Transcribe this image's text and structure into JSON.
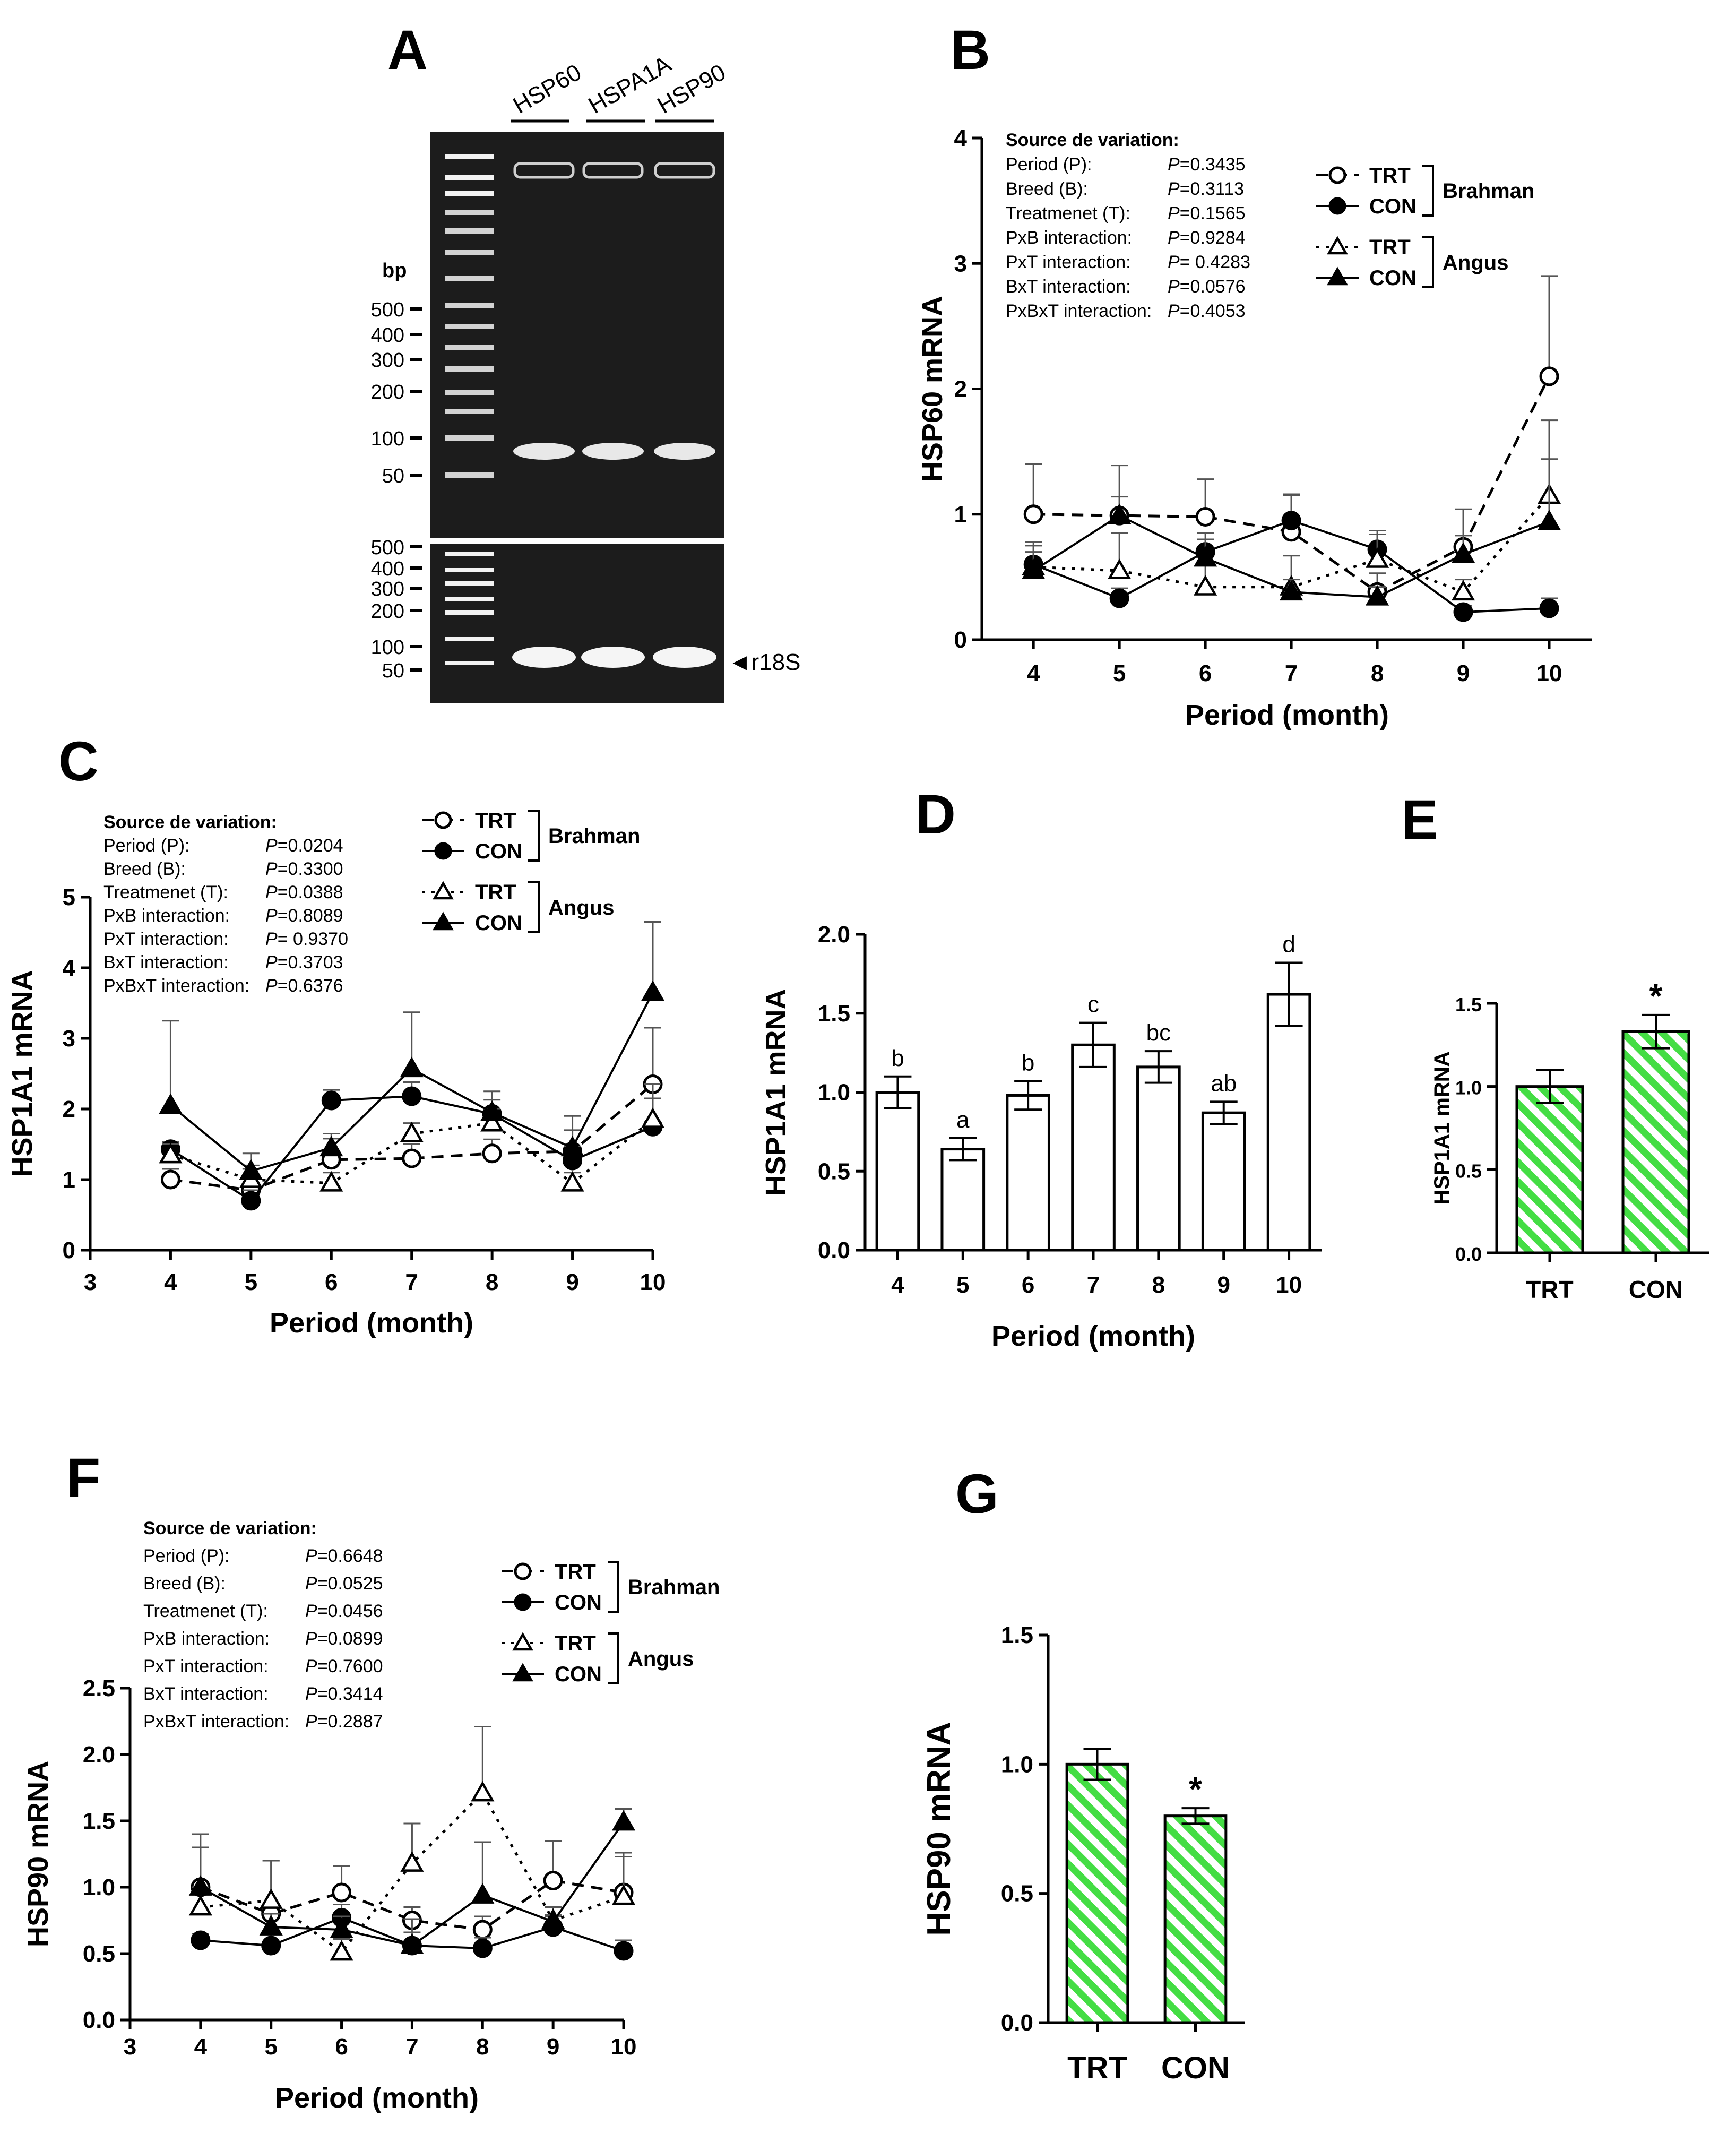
{
  "gel": {
    "letter": "A",
    "lanes": [
      "HSP60",
      "HSPA1A",
      "HSP90"
    ],
    "bp_title": "bp",
    "ladder_top": [
      "500",
      "400",
      "300",
      "200",
      "100",
      "50"
    ],
    "ladder_bottom": [
      "500",
      "400",
      "300",
      "200",
      "100",
      "50"
    ],
    "ref_label": "◄r18S"
  },
  "colors": {
    "green_fill": "#44dd44",
    "green_stroke": "#000000",
    "gel_bg": "#1c1c1c"
  },
  "chart_data": [
    {
      "letter": "B",
      "type": "line",
      "xlabel": "Period (month)",
      "ylabel": "HSP60 mRNA",
      "xlim": [
        3.4,
        10.5
      ],
      "ylim": [
        0,
        4
      ],
      "xticks": [
        "4",
        "5",
        "6",
        "7",
        "8",
        "9",
        "10"
      ],
      "yticks": [
        "0",
        "1",
        "2",
        "3",
        "4"
      ],
      "x": [
        4,
        5,
        6,
        7,
        8,
        9,
        10
      ],
      "stats_title": "Source de variation:",
      "stats": [
        [
          "Period (P):",
          "P=0.3435"
        ],
        [
          "Breed (B):",
          "P=0.3113"
        ],
        [
          "Treatmenet (T):",
          "P=0.1565"
        ],
        [
          "PxB interaction:",
          "P=0.9284"
        ],
        [
          "PxT interaction:",
          "P= 0.4283"
        ],
        [
          "BxT interaction:",
          "P=0.0576"
        ],
        [
          "PxBxT interaction:",
          "P=0.4053"
        ]
      ],
      "legend_groups": [
        "Brahman",
        "Angus"
      ],
      "series": [
        {
          "name": "TRT",
          "group": "Brahman",
          "marker": "circle-open",
          "line": "dashed",
          "values": [
            1.0,
            0.99,
            0.98,
            0.86,
            0.38,
            0.74,
            2.1
          ],
          "err": [
            0.4,
            0.4,
            0.3,
            0.3,
            0.15,
            0.3,
            0.8
          ]
        },
        {
          "name": "CON",
          "group": "Brahman",
          "marker": "circle-filled",
          "line": "solid",
          "values": [
            0.6,
            0.33,
            0.7,
            0.95,
            0.72,
            0.22,
            0.25
          ],
          "err": [
            0.15,
            0.08,
            0.15,
            0.2,
            0.15,
            0.05,
            0.08
          ]
        },
        {
          "name": "TRT",
          "group": "Angus",
          "marker": "triangle-open",
          "line": "dotted",
          "values": [
            0.58,
            0.55,
            0.42,
            0.42,
            0.64,
            0.38,
            1.15
          ],
          "err": [
            0.2,
            0.3,
            0.2,
            0.25,
            0.2,
            0.1,
            0.6
          ]
        },
        {
          "name": "CON",
          "group": "Angus",
          "marker": "triangle-filled",
          "line": "solid",
          "values": [
            0.55,
            0.99,
            0.65,
            0.38,
            0.34,
            0.68,
            0.94
          ],
          "err": [
            0.15,
            0.15,
            0.15,
            0.1,
            0.08,
            0.15,
            0.5
          ]
        }
      ]
    },
    {
      "letter": "C",
      "type": "line",
      "xlabel": "Period (month)",
      "ylabel": "HSP1A1 mRNA",
      "xlim": [
        3,
        10
      ],
      "ylim": [
        0,
        5
      ],
      "xticks": [
        "3",
        "4",
        "5",
        "6",
        "7",
        "8",
        "9",
        "10"
      ],
      "yticks": [
        "0",
        "1",
        "2",
        "3",
        "4",
        "5"
      ],
      "x": [
        4,
        5,
        6,
        7,
        8,
        9,
        10
      ],
      "stats_title": "Source de variation:",
      "stats": [
        [
          "Period (P):",
          "P=0.0204"
        ],
        [
          "Breed (B):",
          "P=0.3300"
        ],
        [
          "Treatmenet (T):",
          "P=0.0388"
        ],
        [
          "PxB interaction:",
          "P=0.8089"
        ],
        [
          "PxT interaction:",
          "P= 0.9370"
        ],
        [
          "BxT interaction:",
          "P=0.3703"
        ],
        [
          "PxBxT interaction:",
          "P=0.6376"
        ]
      ],
      "legend_groups": [
        "Brahman",
        "Angus"
      ],
      "series": [
        {
          "name": "TRT",
          "group": "Brahman",
          "marker": "circle-open",
          "line": "dashed",
          "values": [
            1.0,
            0.85,
            1.28,
            1.3,
            1.37,
            1.4,
            2.35
          ],
          "err": [
            0.15,
            0.3,
            0.3,
            0.2,
            0.2,
            0.3,
            0.8
          ]
        },
        {
          "name": "CON",
          "group": "Brahman",
          "marker": "circle-filled",
          "line": "solid",
          "values": [
            1.43,
            0.7,
            2.12,
            2.18,
            1.93,
            1.27,
            1.75
          ],
          "err": [
            0.1,
            0.15,
            0.15,
            0.2,
            0.2,
            0.2,
            0.4
          ]
        },
        {
          "name": "TRT",
          "group": "Angus",
          "marker": "triangle-open",
          "line": "dotted",
          "values": [
            1.35,
            1.0,
            0.95,
            1.65,
            1.8,
            0.95,
            1.85
          ],
          "err": [
            0.15,
            0.2,
            0.15,
            0.15,
            0.2,
            0.15,
            0.5
          ]
        },
        {
          "name": "CON",
          "group": "Angus",
          "marker": "triangle-filled",
          "line": "solid",
          "values": [
            2.05,
            1.12,
            1.45,
            2.57,
            1.95,
            1.45,
            3.65
          ],
          "err": [
            1.2,
            0.25,
            0.2,
            0.8,
            0.3,
            0.45,
            1.0
          ]
        }
      ]
    },
    {
      "letter": "D",
      "type": "bar",
      "xlabel": "Period (month)",
      "ylabel": "HSP1A1 mRNA",
      "ylim": [
        0,
        2.0
      ],
      "yticks": [
        "0.0",
        "0.5",
        "1.0",
        "1.5",
        "2.0"
      ],
      "categories": [
        "4",
        "5",
        "6",
        "7",
        "8",
        "9",
        "10"
      ],
      "values": [
        1.0,
        0.64,
        0.98,
        1.3,
        1.16,
        0.87,
        1.62
      ],
      "err": [
        0.1,
        0.07,
        0.09,
        0.14,
        0.1,
        0.07,
        0.2
      ],
      "letters": [
        "b",
        "a",
        "b",
        "c",
        "bc",
        "ab",
        "d"
      ]
    },
    {
      "letter": "E",
      "type": "bar",
      "ylabel": "HSP1A1 mRNA",
      "ylim": [
        0,
        1.5
      ],
      "yticks": [
        "0.0",
        "0.5",
        "1.0",
        "1.5"
      ],
      "categories": [
        "TRT",
        "CON"
      ],
      "values": [
        1.0,
        1.33
      ],
      "err": [
        0.1,
        0.1
      ],
      "annotation": "*"
    },
    {
      "letter": "F",
      "type": "line",
      "xlabel": "Period (month)",
      "ylabel": "HSP90 mRNA",
      "xlim": [
        3,
        10
      ],
      "ylim": [
        0,
        2.5
      ],
      "xticks": [
        "3",
        "4",
        "5",
        "6",
        "7",
        "8",
        "9",
        "10"
      ],
      "yticks": [
        "0.0",
        "0.5",
        "1.0",
        "1.5",
        "2.0",
        "2.5"
      ],
      "x": [
        4,
        5,
        6,
        7,
        8,
        9,
        10
      ],
      "stats_title": "Source de variation:",
      "stats": [
        [
          "Period (P):",
          "P=0.6648"
        ],
        [
          "Breed (B):",
          "P=0.0525"
        ],
        [
          "Treatmenet (T):",
          "P=0.0456"
        ],
        [
          "PxB interaction:",
          "P=0.0899"
        ],
        [
          "PxT interaction:",
          "P=0.7600"
        ],
        [
          "BxT interaction:",
          "P=0.3414"
        ],
        [
          "PxBxT interaction:",
          "P=0.2887"
        ]
      ],
      "legend_groups": [
        "Brahman",
        "Angus"
      ],
      "series": [
        {
          "name": "TRT",
          "group": "Brahman",
          "marker": "circle-open",
          "line": "dashed",
          "values": [
            1.0,
            0.8,
            0.96,
            0.75,
            0.68,
            1.05,
            0.96
          ],
          "err": [
            0.3,
            0.4,
            0.2,
            0.1,
            0.1,
            0.3,
            0.3
          ]
        },
        {
          "name": "CON",
          "group": "Brahman",
          "marker": "circle-filled",
          "line": "solid",
          "values": [
            0.6,
            0.56,
            0.77,
            0.56,
            0.54,
            0.7,
            0.52
          ],
          "err": [
            0.05,
            0.1,
            0.1,
            0.1,
            0.08,
            0.08,
            0.08
          ]
        },
        {
          "name": "TRT",
          "group": "Angus",
          "marker": "triangle-open",
          "line": "dotted",
          "values": [
            0.85,
            0.9,
            0.51,
            1.18,
            1.71,
            0.75,
            0.93
          ],
          "err": [
            0.15,
            0.3,
            0.1,
            0.3,
            0.5,
            0.1,
            0.3
          ]
        },
        {
          "name": "CON",
          "group": "Angus",
          "marker": "triangle-filled",
          "line": "solid",
          "values": [
            1.0,
            0.7,
            0.68,
            0.56,
            0.94,
            0.74,
            1.49
          ],
          "err": [
            0.4,
            0.1,
            0.1,
            0.2,
            0.4,
            0.05,
            0.1
          ]
        }
      ]
    },
    {
      "letter": "G",
      "type": "bar",
      "ylabel": "HSP90 mRNA",
      "ylim": [
        0,
        1.5
      ],
      "yticks": [
        "0.0",
        "0.5",
        "1.0",
        "1.5"
      ],
      "categories": [
        "TRT",
        "CON"
      ],
      "values": [
        1.0,
        0.8
      ],
      "err": [
        0.06,
        0.03
      ],
      "annotation": "*"
    }
  ]
}
